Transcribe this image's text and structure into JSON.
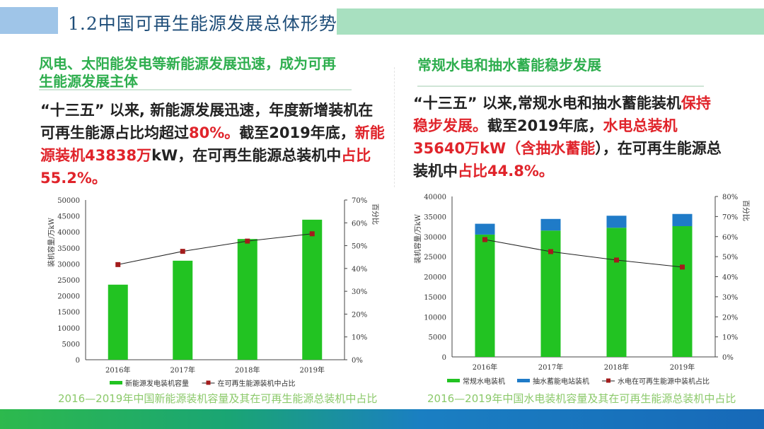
{
  "header": {
    "title": "1.2中国可再生能源发展总体形势"
  },
  "left": {
    "subtitle_1": "风电、太阳能发电等新能源发展迅速，成为可再",
    "subtitle_2": "生能源发展主体",
    "para": [
      "“十三五” 以来, 新能源发展迅速，年度新增装机在",
      "可再生能源占比均超过",
      "80%。",
      "截至2019年底，",
      "新能",
      "源装机43838万",
      "kW，在可再生能源总装机中",
      "占比",
      "55.2%。"
    ],
    "caption": "2016—2019年中国新能源装机容量及其在可再生能源总装机中占比"
  },
  "right": {
    "subtitle": "常规水电和抽水蓄能稳步发展",
    "para": [
      "“十三五” 以来,常规水电和抽水蓄能装机",
      "保持稳",
      "步发展。",
      "截至2019年底，",
      "水电总装机",
      "35640万",
      "kW（",
      "含抽水蓄能",
      "），在可再生能源总装机中",
      "占比",
      "44.8%。"
    ],
    "caption": "2016—2019年中国水电装机容量及其在可再生能源总装机中占比"
  },
  "colors": {
    "green": "#22c322",
    "blue": "#1f7bc8",
    "marker": "#a31c1c"
  },
  "chart_data": [
    {
      "type": "bar",
      "categories": [
        "2016年",
        "2017年",
        "2018年",
        "2019年"
      ],
      "series": [
        {
          "name": "新能源发电装机容量",
          "kind": "bar",
          "values": [
            23500,
            31000,
            37800,
            43838
          ]
        },
        {
          "name": "在可再生能源装机中占比",
          "kind": "line",
          "axis": "right",
          "values": [
            41.7,
            47.5,
            52,
            55.2
          ]
        }
      ],
      "ylabel": "装机容量/万kW",
      "y2label": "百分比",
      "ylim": [
        0,
        50000
      ],
      "ystep": 5000,
      "y2lim": [
        0,
        70
      ],
      "y2step": 10
    },
    {
      "type": "bar",
      "stacked": true,
      "categories": [
        "2016年",
        "2017年",
        "2018年",
        "2019年"
      ],
      "series": [
        {
          "name": "常规水电装机",
          "kind": "bar",
          "values": [
            30500,
            31500,
            32200,
            32600
          ]
        },
        {
          "name": "抽水蓄能电站装机",
          "kind": "bar",
          "values": [
            2700,
            2900,
            3000,
            3040
          ]
        },
        {
          "name": "水电在可再生能源中装机占比",
          "kind": "line",
          "axis": "right",
          "values": [
            58.5,
            52.5,
            48.3,
            44.8
          ]
        }
      ],
      "ylabel": "装机容量/万kW",
      "y2label": "百分比",
      "ylim": [
        0,
        40000
      ],
      "ystep": 5000,
      "y2lim": [
        0,
        80
      ],
      "y2step": 10
    }
  ]
}
